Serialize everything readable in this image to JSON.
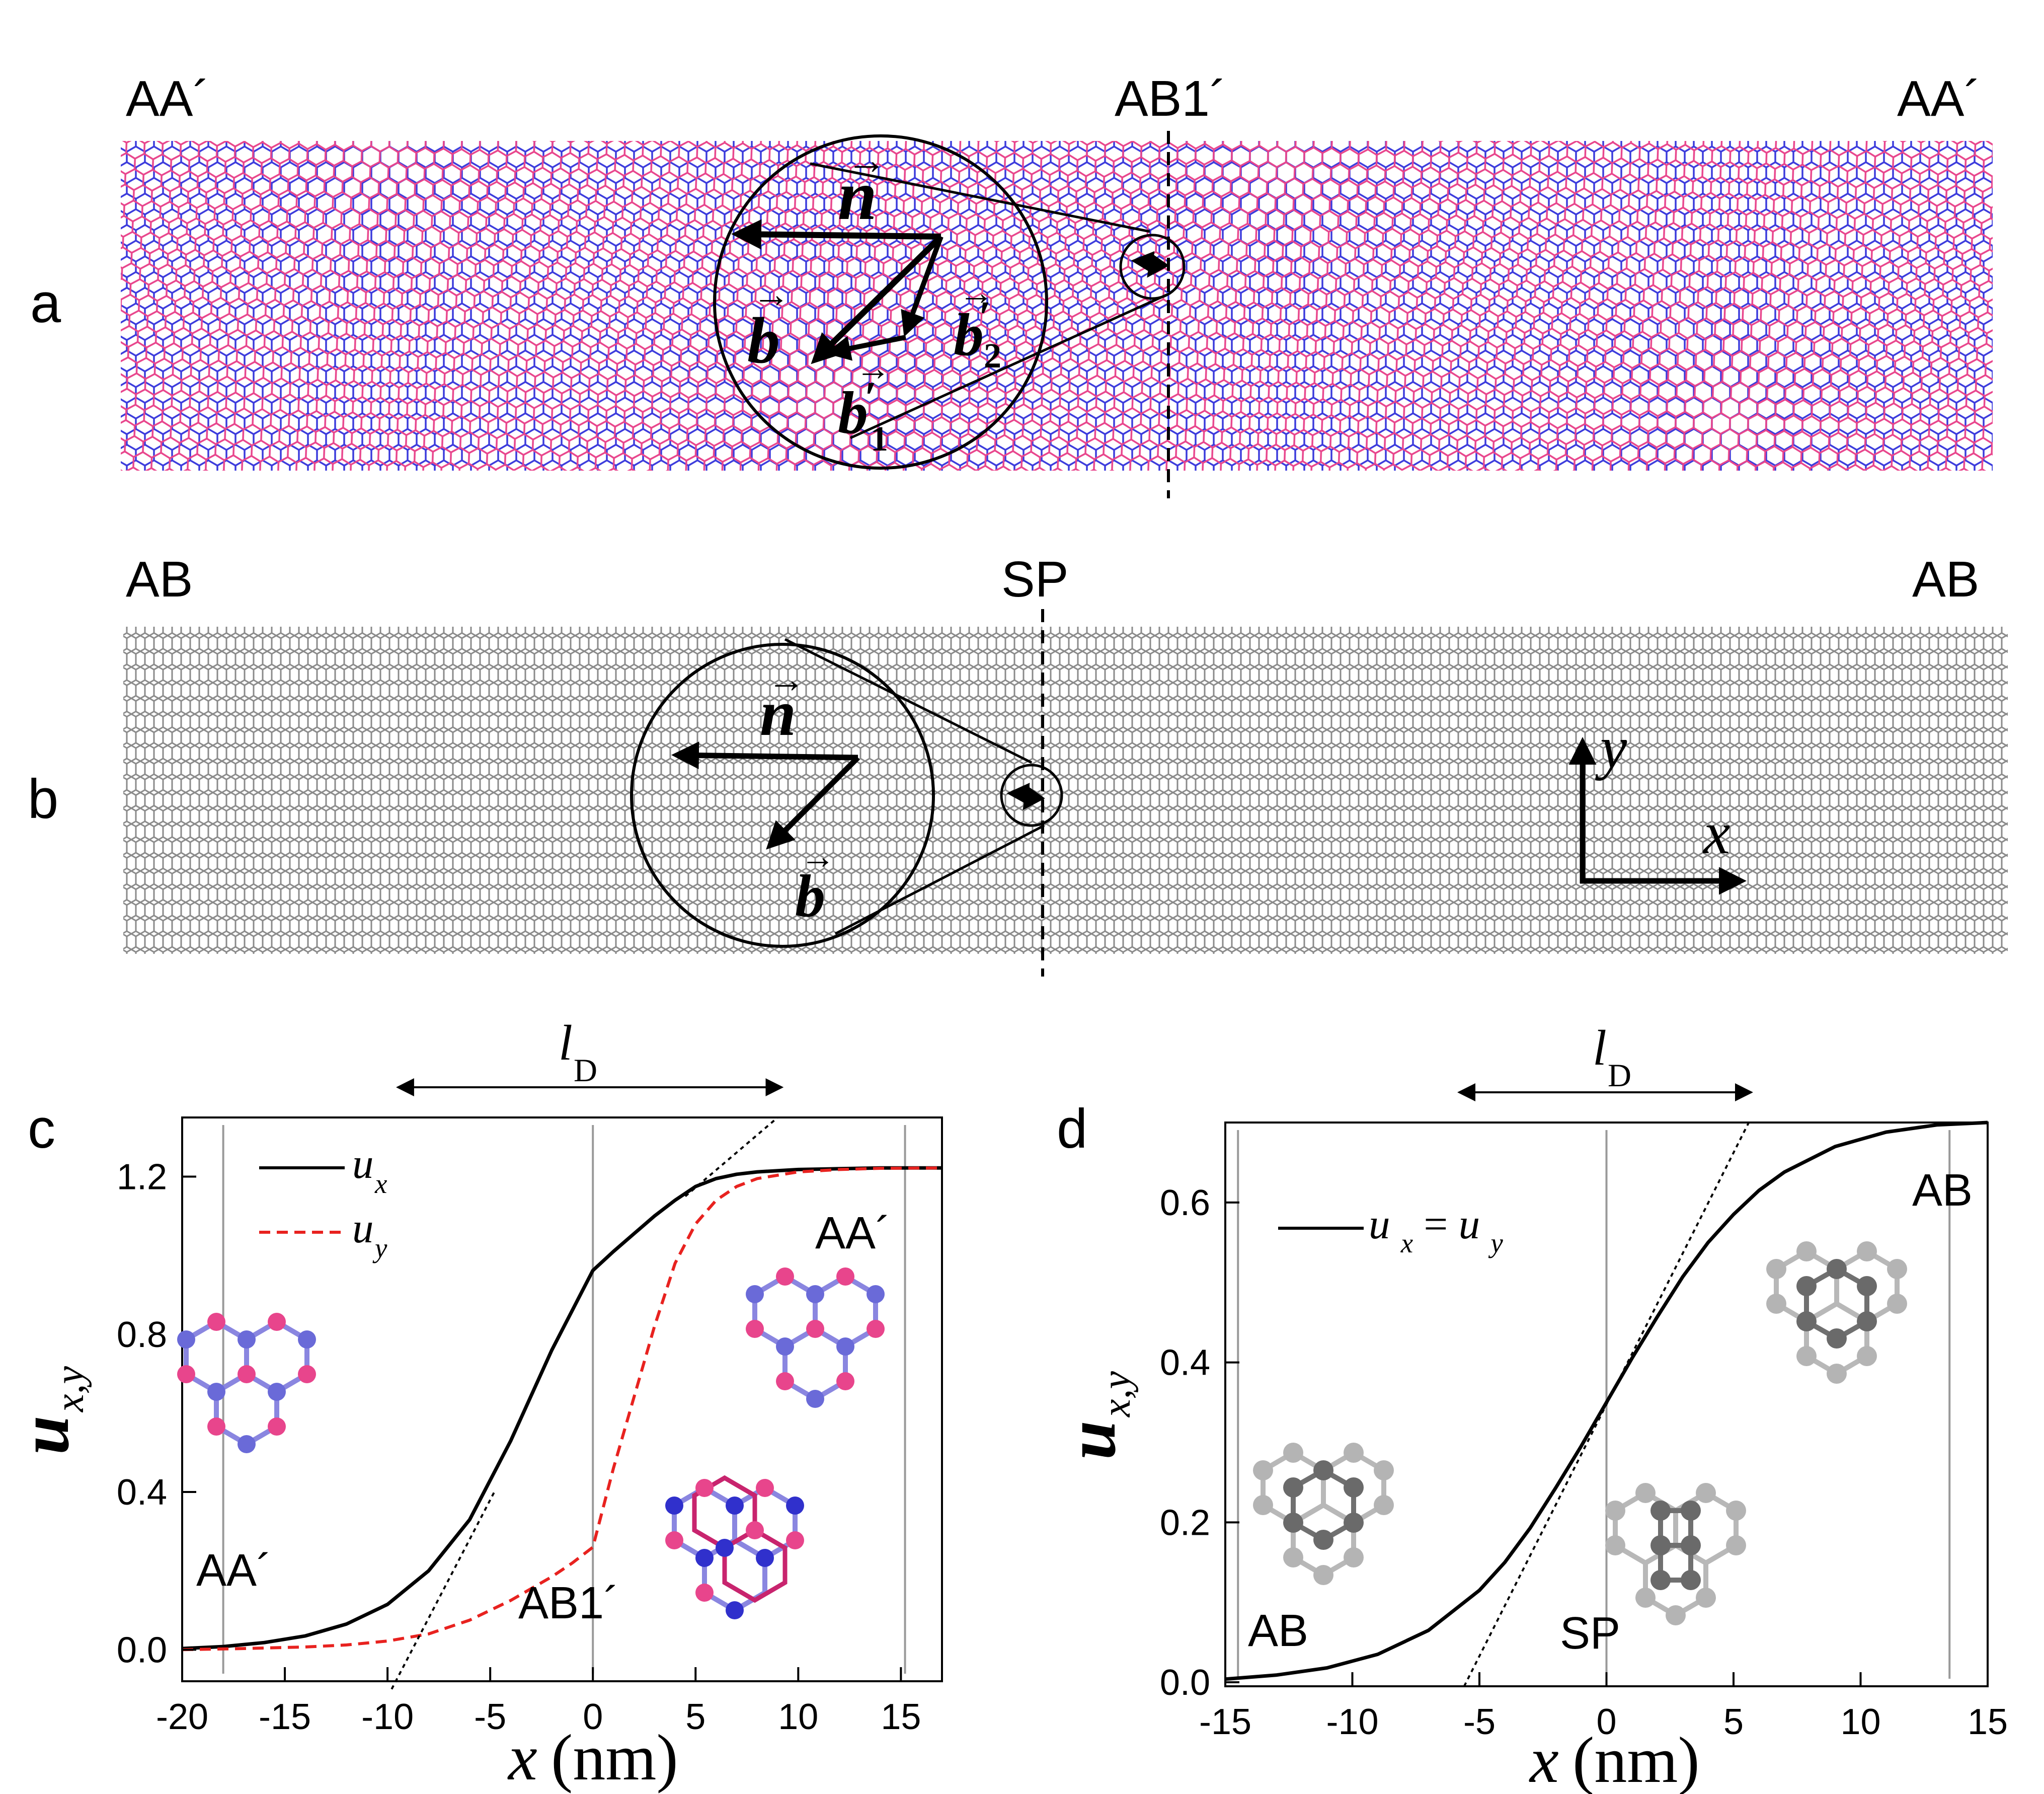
{
  "panels": {
    "a": {
      "letter": "a",
      "label_left": "AA´",
      "label_center": "AB1´",
      "label_right": "AA´",
      "vec_n": "n",
      "vec_b": "b",
      "vec_b1": "b",
      "vec_b1_prime": "′",
      "vec_b1_sub": "1",
      "vec_b2": "b",
      "vec_b2_prime": "′",
      "vec_b2_sub": "2",
      "arrow_glyph": "→"
    },
    "b": {
      "letter": "b",
      "label_left": "AB",
      "label_center": "SP",
      "label_right": "AB",
      "vec_n": "n",
      "vec_b": "b",
      "axis_x": "x",
      "axis_y": "y",
      "arrow_glyph": "→"
    }
  },
  "colors": {
    "layer_blue": "#3b3bdc",
    "layer_pink": "#e8458c",
    "lattice_gray": "#8a8a8a",
    "ux": "#000000",
    "uy": "#e8221f"
  },
  "chart_data": [
    {
      "type": "line",
      "panel": "c",
      "letter": "c",
      "xlabel_var": "x",
      "xlabel_unit": "(nm)",
      "ylabel_var": "u",
      "ylabel_sub": "x,y",
      "xlim": [
        -20,
        17
      ],
      "ylim": [
        -0.08,
        1.35
      ],
      "xticks": [
        -20,
        -15,
        -10,
        -5,
        0,
        5,
        10,
        15
      ],
      "yticks": [
        0.0,
        0.4,
        0.8,
        1.2
      ],
      "ytick_labels": [
        "0.0",
        "0.4",
        "0.8",
        "1.2"
      ],
      "vlines": [
        -18,
        0,
        15.2
      ],
      "lD_label": "l",
      "lD_sub": "D",
      "lD_range": [
        -9.5,
        9.2
      ],
      "legend": [
        {
          "name": "u",
          "sub": "x",
          "style": "solid"
        },
        {
          "name": "u",
          "sub": "y",
          "style": "dashed"
        }
      ],
      "annotations": {
        "left": "AA´",
        "center": "AB1´",
        "right": "AA´"
      },
      "series": [
        {
          "name": "ux",
          "style": "solid",
          "x": [
            -20,
            -18,
            -16,
            -14,
            -12,
            -10,
            -8,
            -6,
            -4,
            -2,
            0,
            1,
            2,
            3,
            4,
            5,
            6,
            7,
            8,
            10,
            12,
            14,
            17
          ],
          "y": [
            0.003,
            0.008,
            0.018,
            0.035,
            0.065,
            0.115,
            0.2,
            0.33,
            0.53,
            0.76,
            0.962,
            1.01,
            1.055,
            1.1,
            1.14,
            1.175,
            1.195,
            1.206,
            1.212,
            1.218,
            1.22,
            1.222,
            1.222
          ]
        },
        {
          "name": "uy",
          "style": "dashed",
          "x": [
            -20,
            -17,
            -14,
            -12,
            -10,
            -8,
            -6,
            -4,
            -2,
            -1,
            0,
            0.5,
            1,
            2,
            3,
            4,
            5,
            6,
            7,
            8,
            10,
            12,
            14,
            17
          ],
          "y": [
            0.0,
            0.003,
            0.007,
            0.012,
            0.022,
            0.04,
            0.075,
            0.125,
            0.185,
            0.22,
            0.26,
            0.36,
            0.46,
            0.64,
            0.82,
            0.98,
            1.08,
            1.14,
            1.175,
            1.195,
            1.212,
            1.218,
            1.221,
            1.222
          ]
        },
        {
          "name": "tangent-left",
          "style": "dotted",
          "x": [
            -9.8,
            -4.8
          ],
          "y": [
            -0.1,
            0.4
          ]
        },
        {
          "name": "tangent-right",
          "style": "dotted",
          "x": [
            4.5,
            9.0
          ],
          "y": [
            1.15,
            1.35
          ]
        }
      ]
    },
    {
      "type": "line",
      "panel": "d",
      "letter": "d",
      "xlabel_var": "x",
      "xlabel_unit": "(nm)",
      "ylabel_var": "u",
      "ylabel_sub": "x,y",
      "xlim": [
        -15,
        15
      ],
      "ylim": [
        -0.005,
        0.7
      ],
      "xticks": [
        -15,
        -10,
        -5,
        0,
        5,
        10,
        15
      ],
      "yticks": [
        0.0,
        0.2,
        0.4,
        0.6
      ],
      "ytick_labels": [
        "0.0",
        "0.2",
        "0.4",
        "0.6"
      ],
      "vlines": [
        -14.5,
        0,
        13.5
      ],
      "lD_label": "l",
      "lD_sub": "D",
      "lD_range": [
        -5.8,
        5.7
      ],
      "legend": [
        {
          "name": "u",
          "sub": "x",
          "eq": "=",
          "name2": "u",
          "sub2": "y",
          "style": "solid"
        }
      ],
      "annotations": {
        "left": "AB",
        "center": "SP",
        "right": "AB"
      },
      "series": [
        {
          "name": "ux=uy",
          "style": "solid",
          "x": [
            -15,
            -13,
            -11,
            -9,
            -7,
            -5,
            -4,
            -3,
            -2,
            -1,
            0,
            1,
            2,
            3,
            4,
            5,
            6,
            7,
            9,
            11,
            13,
            15
          ],
          "y": [
            0.004,
            0.009,
            0.018,
            0.035,
            0.065,
            0.115,
            0.15,
            0.193,
            0.243,
            0.295,
            0.35,
            0.405,
            0.457,
            0.507,
            0.55,
            0.585,
            0.615,
            0.638,
            0.67,
            0.688,
            0.697,
            0.7
          ]
        },
        {
          "name": "tangent",
          "style": "dotted",
          "x": [
            -5.6,
            5.6
          ],
          "y": [
            -0.005,
            0.7
          ]
        }
      ]
    }
  ]
}
